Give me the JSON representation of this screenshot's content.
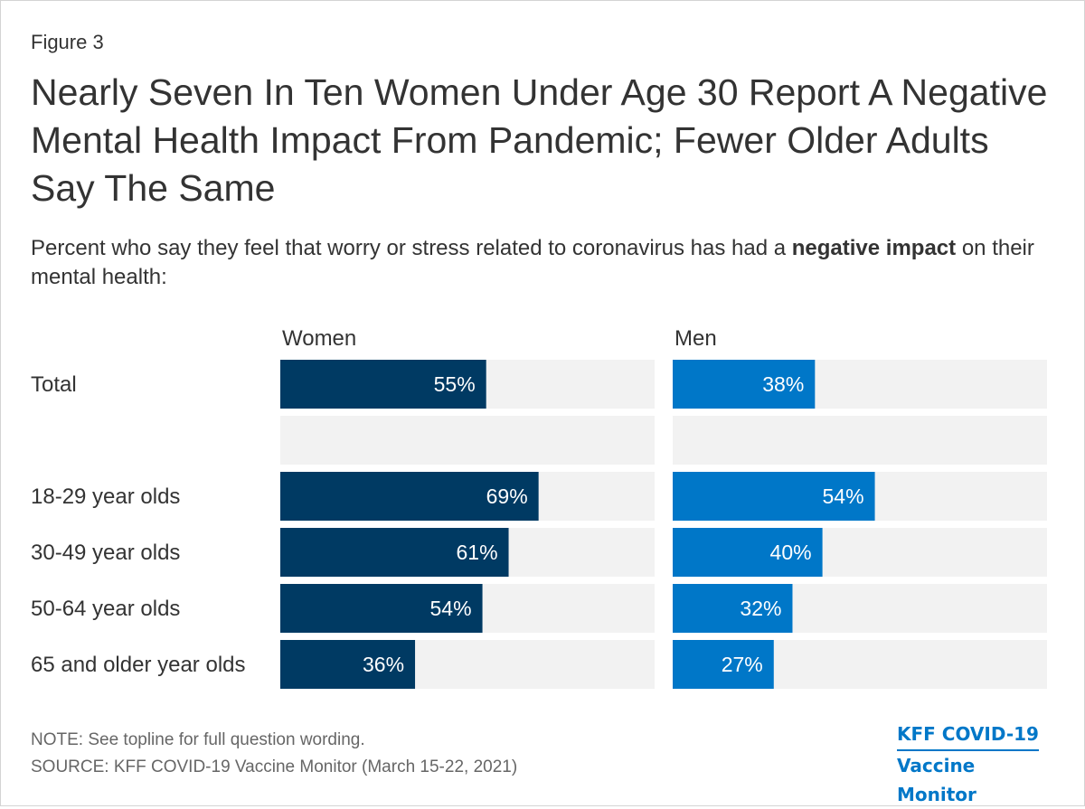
{
  "header": {
    "figure_label": "Figure 3",
    "title": "Nearly Seven In Ten Women Under Age 30 Report A Negative Mental Health Impact From Pandemic; Fewer Older Adults Say The Same",
    "subtitle_prefix": "Percent who say they feel that worry or stress related to coronavirus has had a ",
    "subtitle_bold": "negative impact",
    "subtitle_suffix": " on their mental health:"
  },
  "chart_data": {
    "type": "bar",
    "orientation": "horizontal",
    "categories": [
      "Total",
      "",
      "18-29 year olds",
      "30-49 year olds",
      "50-64 year olds",
      "65 and older year olds"
    ],
    "series": [
      {
        "name": "Women",
        "values": [
          55,
          null,
          69,
          61,
          54,
          36
        ],
        "labels": [
          "55%",
          "",
          "69%",
          "61%",
          "54%",
          "36%"
        ],
        "color": "#003a63"
      },
      {
        "name": "Men",
        "values": [
          38,
          null,
          54,
          40,
          32,
          27
        ],
        "labels": [
          "38%",
          "",
          "54%",
          "40%",
          "32%",
          "27%"
        ],
        "color": "#0077c8"
      }
    ],
    "xlim": [
      0,
      100
    ],
    "background_color": "#f2f2f2",
    "grid": false,
    "legend": "none",
    "panel_labels_position": "top"
  },
  "footer": {
    "note": "NOTE: See topline for full question wording.",
    "source": "SOURCE: KFF COVID-19 Vaccine Monitor (March 15-22, 2021)"
  },
  "logo": {
    "line1": "KFF COVID-19",
    "line2": "Vaccine Monitor",
    "color": "#0077c8"
  }
}
